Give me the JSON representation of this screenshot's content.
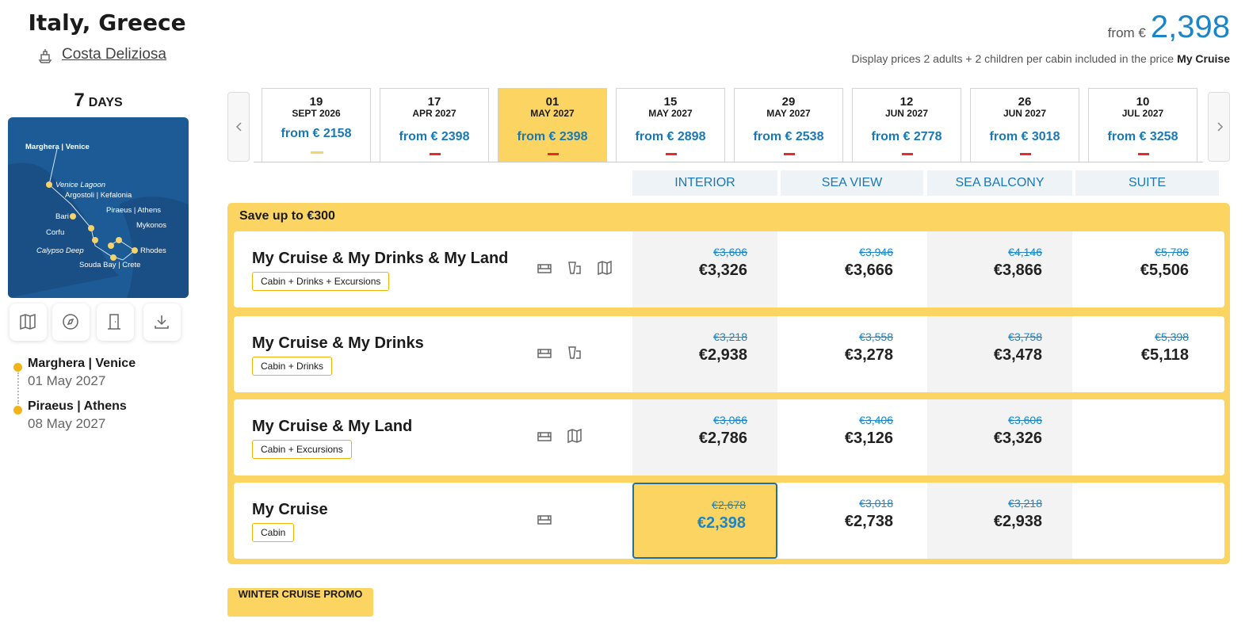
{
  "header": {
    "title": "Italy, Greece",
    "ship": "Costa Deliziosa",
    "price_prefix": "from €",
    "price": "2,398",
    "note": "Display prices 2 adults + 2 children per cabin included in the price",
    "note_bold": "My Cruise"
  },
  "duration": {
    "number": "7",
    "unit": "DAYS"
  },
  "map": {
    "labels": [
      "Marghera | Venice",
      "Venice Lagoon",
      "Argostoli | Kefalonia",
      "Piraeus | Athens",
      "Bari",
      "Mykonos",
      "Corfu",
      "Calypso Deep",
      "Rhodes",
      "Souda Bay | Crete"
    ]
  },
  "itinerary": [
    {
      "port": "Marghera | Venice",
      "date": "01 May 2027"
    },
    {
      "port": "Piraeus | Athens",
      "date": "08 May 2027"
    }
  ],
  "dates": [
    {
      "day": "19",
      "month": "SEPT 2026",
      "price": "from € 2158"
    },
    {
      "day": "17",
      "month": "APR 2027",
      "price": "from € 2398"
    },
    {
      "day": "01",
      "month": "MAY 2027",
      "price": "from € 2398"
    },
    {
      "day": "15",
      "month": "MAY 2027",
      "price": "from € 2898"
    },
    {
      "day": "29",
      "month": "MAY 2027",
      "price": "from € 2538"
    },
    {
      "day": "12",
      "month": "JUN 2027",
      "price": "from € 2778"
    },
    {
      "day": "26",
      "month": "JUN 2027",
      "price": "from € 3018"
    },
    {
      "day": "10",
      "month": "JUL 2027",
      "price": "from € 3258"
    }
  ],
  "cabin_types": [
    "INTERIOR",
    "SEA VIEW",
    "SEA BALCONY",
    "SUITE"
  ],
  "promo": {
    "title": "Save up to €300",
    "packages": [
      {
        "name": "My Cruise & My Drinks & My Land",
        "tag": "Cabin + Drinks + Excursions",
        "prices": [
          {
            "old": "€3,606",
            "new": "€3,326"
          },
          {
            "old": "€3,946",
            "new": "€3,666"
          },
          {
            "old": "€4,146",
            "new": "€3,866"
          },
          {
            "old": "€5,786",
            "new": "€5,506"
          }
        ]
      },
      {
        "name": "My Cruise & My Drinks",
        "tag": "Cabin + Drinks",
        "prices": [
          {
            "old": "€3,218",
            "new": "€2,938"
          },
          {
            "old": "€3,558",
            "new": "€3,278"
          },
          {
            "old": "€3,758",
            "new": "€3,478"
          },
          {
            "old": "€5,398",
            "new": "€5,118"
          }
        ]
      },
      {
        "name": "My Cruise & My Land",
        "tag": "Cabin + Excursions",
        "prices": [
          {
            "old": "€3,066",
            "new": "€2,786"
          },
          {
            "old": "€3,406",
            "new": "€3,126"
          },
          {
            "old": "€3,606",
            "new": "€3,326"
          }
        ]
      },
      {
        "name": "My Cruise",
        "tag": "Cabin",
        "prices": [
          {
            "old": "€2,678",
            "new": "€2,398"
          },
          {
            "old": "€3,018",
            "new": "€2,738"
          },
          {
            "old": "€3,218",
            "new": "€2,938"
          }
        ]
      }
    ]
  },
  "button": "WINTER CRUISE PROMO"
}
